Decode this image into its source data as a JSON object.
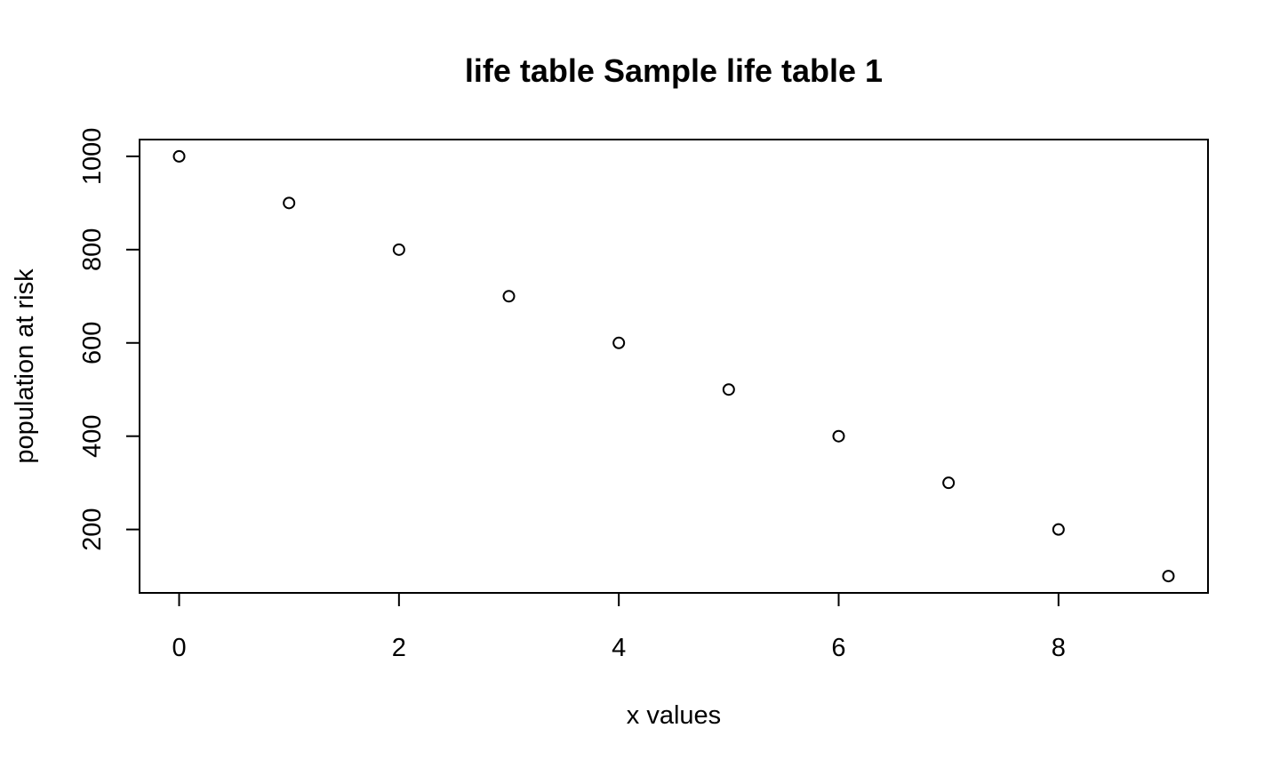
{
  "chart_data": {
    "type": "scatter",
    "title": "life table Sample life table 1",
    "xlabel": "x values",
    "ylabel": "population at risk",
    "xlim": [
      -0.36,
      9.36
    ],
    "ylim": [
      64,
      1036
    ],
    "x_ticks": [
      0,
      2,
      4,
      6,
      8
    ],
    "y_ticks": [
      200,
      400,
      600,
      800,
      1000
    ],
    "x_tick_labels": [
      "0",
      "2",
      "4",
      "6",
      "8"
    ],
    "y_tick_labels": [
      "200",
      "400",
      "600",
      "800",
      "1000"
    ],
    "grid": false,
    "legend": "none",
    "marker": "open-circle",
    "colors": {
      "points": "#000000",
      "axes": "#000000",
      "background": "#ffffff"
    },
    "series": [
      {
        "x": [
          0,
          1,
          2,
          3,
          4,
          5,
          6,
          7,
          8,
          9
        ],
        "y": [
          1000,
          900,
          800,
          700,
          600,
          500,
          400,
          300,
          200,
          100
        ]
      }
    ]
  }
}
